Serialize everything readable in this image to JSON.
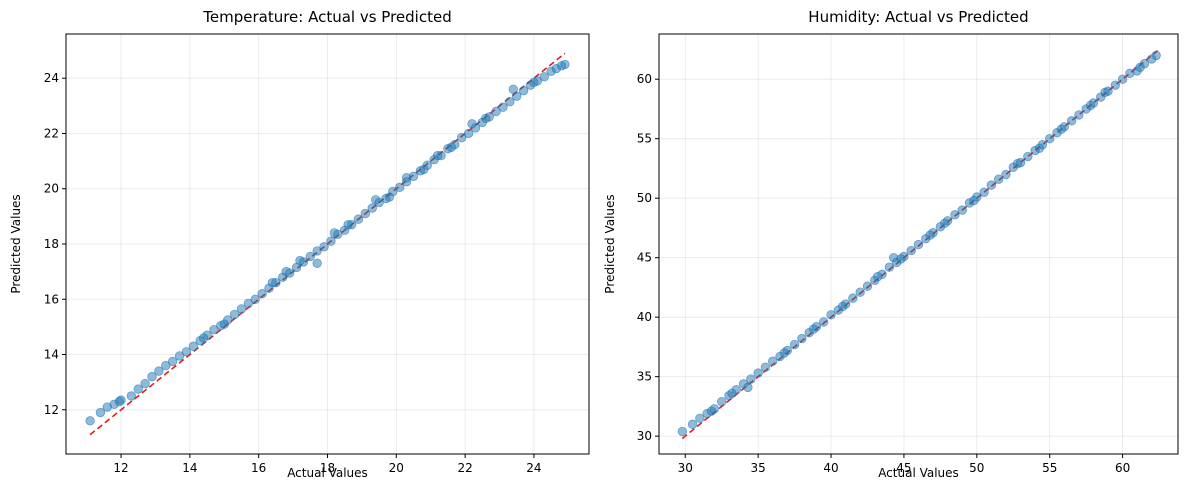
{
  "chart_data": [
    {
      "type": "scatter",
      "title": "Temperature: Actual vs Predicted",
      "xlabel": "Actual Values",
      "ylabel": "Predicted Values",
      "xlim": [
        10.4,
        25.6
      ],
      "ylim": [
        10.4,
        25.6
      ],
      "xticks": [
        12,
        14,
        16,
        18,
        20,
        22,
        24
      ],
      "yticks": [
        12,
        14,
        16,
        18,
        20,
        22,
        24
      ],
      "grid": true,
      "point_color": "#1f77b4",
      "reference_line": {
        "style": "dashed",
        "color": "#e31a1c",
        "from": [
          11.1,
          11.1
        ],
        "to": [
          24.9,
          24.9
        ]
      },
      "points": [
        [
          11.1,
          11.6
        ],
        [
          11.4,
          11.9
        ],
        [
          11.6,
          12.1
        ],
        [
          11.8,
          12.2
        ],
        [
          11.95,
          12.3
        ],
        [
          12.0,
          12.35
        ],
        [
          12.3,
          12.5
        ],
        [
          12.5,
          12.75
        ],
        [
          12.7,
          12.95
        ],
        [
          12.9,
          13.2
        ],
        [
          13.1,
          13.4
        ],
        [
          13.3,
          13.6
        ],
        [
          13.5,
          13.75
        ],
        [
          13.7,
          13.95
        ],
        [
          13.9,
          14.1
        ],
        [
          14.1,
          14.3
        ],
        [
          14.3,
          14.5
        ],
        [
          14.5,
          14.7
        ],
        [
          14.7,
          14.9
        ],
        [
          14.9,
          15.05
        ],
        [
          15.1,
          15.25
        ],
        [
          15.3,
          15.45
        ],
        [
          15.5,
          15.65
        ],
        [
          15.7,
          15.85
        ],
        [
          15.9,
          16.0
        ],
        [
          16.1,
          16.2
        ],
        [
          16.3,
          16.4
        ],
        [
          16.5,
          16.6
        ],
        [
          16.7,
          16.8
        ],
        [
          16.9,
          16.95
        ],
        [
          17.1,
          17.15
        ],
        [
          17.3,
          17.35
        ],
        [
          17.5,
          17.55
        ],
        [
          17.7,
          17.75
        ],
        [
          17.9,
          17.9
        ],
        [
          18.1,
          18.1
        ],
        [
          18.3,
          18.35
        ],
        [
          18.5,
          18.5
        ],
        [
          18.7,
          18.7
        ],
        [
          18.9,
          18.9
        ],
        [
          19.1,
          19.1
        ],
        [
          19.3,
          19.3
        ],
        [
          19.5,
          19.5
        ],
        [
          19.7,
          19.65
        ],
        [
          19.9,
          19.9
        ],
        [
          20.1,
          20.05
        ],
        [
          20.3,
          20.25
        ],
        [
          20.5,
          20.45
        ],
        [
          20.7,
          20.65
        ],
        [
          20.9,
          20.85
        ],
        [
          21.1,
          21.05
        ],
        [
          21.3,
          21.2
        ],
        [
          21.5,
          21.45
        ],
        [
          21.7,
          21.6
        ],
        [
          21.9,
          21.85
        ],
        [
          22.1,
          22.0
        ],
        [
          22.3,
          22.2
        ],
        [
          22.5,
          22.4
        ],
        [
          22.7,
          22.6
        ],
        [
          22.9,
          22.8
        ],
        [
          23.1,
          22.95
        ],
        [
          23.3,
          23.15
        ],
        [
          23.5,
          23.35
        ],
        [
          23.7,
          23.55
        ],
        [
          23.9,
          23.75
        ],
        [
          24.1,
          23.9
        ],
        [
          24.3,
          24.05
        ],
        [
          24.5,
          24.25
        ],
        [
          24.65,
          24.35
        ],
        [
          24.8,
          24.45
        ],
        [
          24.9,
          24.5
        ],
        [
          21.6,
          21.5
        ],
        [
          17.7,
          17.3
        ],
        [
          16.4,
          16.6
        ],
        [
          18.6,
          18.7
        ],
        [
          19.4,
          19.6
        ],
        [
          20.8,
          20.7
        ],
        [
          22.2,
          22.35
        ],
        [
          23.4,
          23.6
        ],
        [
          15.0,
          15.1
        ],
        [
          14.4,
          14.6
        ],
        [
          16.8,
          17.0
        ],
        [
          18.2,
          18.4
        ],
        [
          19.8,
          19.7
        ],
        [
          21.2,
          21.2
        ],
        [
          22.6,
          22.55
        ],
        [
          24.0,
          23.85
        ],
        [
          17.2,
          17.4
        ],
        [
          20.3,
          20.4
        ]
      ]
    },
    {
      "type": "scatter",
      "title": "Humidity: Actual vs Predicted",
      "xlabel": "Actual Values",
      "ylabel": "Predicted Values",
      "xlim": [
        28.2,
        63.8
      ],
      "ylim": [
        28.5,
        63.8
      ],
      "xticks": [
        30,
        35,
        40,
        45,
        50,
        55,
        60
      ],
      "yticks": [
        30,
        35,
        40,
        45,
        50,
        55,
        60
      ],
      "grid": true,
      "point_color": "#1f77b4",
      "reference_line": {
        "style": "dashed",
        "color": "#e31a1c",
        "from": [
          29.8,
          29.8
        ],
        "to": [
          62.4,
          62.4
        ]
      },
      "points": [
        [
          29.8,
          30.4
        ],
        [
          30.5,
          31.0
        ],
        [
          31.0,
          31.5
        ],
        [
          31.5,
          31.9
        ],
        [
          32.0,
          32.3
        ],
        [
          32.5,
          32.9
        ],
        [
          33.0,
          33.4
        ],
        [
          33.5,
          33.9
        ],
        [
          34.0,
          34.4
        ],
        [
          34.5,
          34.8
        ],
        [
          35.0,
          35.3
        ],
        [
          35.5,
          35.8
        ],
        [
          36.0,
          36.3
        ],
        [
          36.5,
          36.7
        ],
        [
          37.0,
          37.2
        ],
        [
          37.5,
          37.7
        ],
        [
          38.0,
          38.2
        ],
        [
          38.5,
          38.7
        ],
        [
          39.0,
          39.2
        ],
        [
          39.5,
          39.6
        ],
        [
          40.0,
          40.2
        ],
        [
          40.5,
          40.6
        ],
        [
          41.0,
          41.1
        ],
        [
          41.5,
          41.6
        ],
        [
          42.0,
          42.1
        ],
        [
          42.5,
          42.6
        ],
        [
          43.0,
          43.1
        ],
        [
          43.5,
          43.6
        ],
        [
          44.0,
          44.2
        ],
        [
          44.3,
          45.0
        ],
        [
          44.5,
          44.6
        ],
        [
          45.0,
          45.1
        ],
        [
          45.5,
          45.6
        ],
        [
          46.0,
          46.1
        ],
        [
          46.5,
          46.6
        ],
        [
          47.0,
          47.1
        ],
        [
          47.5,
          47.6
        ],
        [
          48.0,
          48.1
        ],
        [
          48.5,
          48.6
        ],
        [
          49.0,
          49.0
        ],
        [
          49.5,
          49.6
        ],
        [
          50.0,
          50.1
        ],
        [
          50.5,
          50.5
        ],
        [
          51.0,
          51.1
        ],
        [
          51.5,
          51.6
        ],
        [
          52.0,
          52.0
        ],
        [
          52.5,
          52.6
        ],
        [
          53.0,
          53.0
        ],
        [
          53.5,
          53.5
        ],
        [
          54.0,
          54.0
        ],
        [
          54.5,
          54.5
        ],
        [
          55.0,
          55.0
        ],
        [
          55.5,
          55.5
        ],
        [
          56.0,
          56.0
        ],
        [
          56.5,
          56.5
        ],
        [
          57.0,
          57.0
        ],
        [
          57.5,
          57.5
        ],
        [
          58.0,
          58.0
        ],
        [
          58.5,
          58.5
        ],
        [
          59.0,
          59.0
        ],
        [
          59.5,
          59.5
        ],
        [
          60.0,
          60.0
        ],
        [
          60.5,
          60.5
        ],
        [
          61.0,
          60.7
        ],
        [
          61.5,
          61.3
        ],
        [
          62.0,
          61.7
        ],
        [
          62.3,
          62.0
        ],
        [
          34.3,
          34.1
        ],
        [
          36.8,
          37.0
        ],
        [
          40.8,
          40.9
        ],
        [
          43.2,
          43.4
        ],
        [
          46.8,
          46.9
        ],
        [
          49.8,
          49.8
        ],
        [
          52.8,
          52.9
        ],
        [
          55.8,
          55.8
        ],
        [
          58.8,
          58.9
        ],
        [
          31.8,
          32.1
        ],
        [
          38.8,
          39.0
        ],
        [
          47.8,
          47.9
        ],
        [
          54.3,
          54.2
        ],
        [
          57.8,
          57.8
        ],
        [
          61.2,
          61.0
        ],
        [
          33.2,
          33.6
        ],
        [
          44.8,
          44.9
        ]
      ]
    }
  ]
}
